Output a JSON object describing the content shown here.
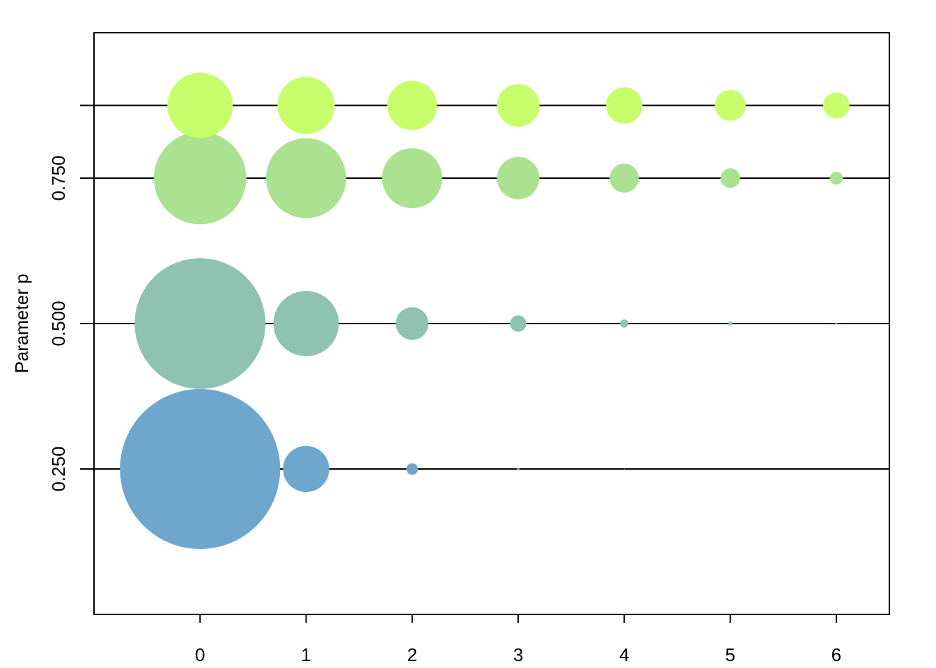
{
  "chart_data": {
    "type": "scatter",
    "title": "",
    "xlabel": "",
    "ylabel": "Parameter p",
    "x": [
      0,
      1,
      2,
      3,
      4,
      5,
      6
    ],
    "x_tick_labels": [
      "0",
      "1",
      "2",
      "3",
      "4",
      "5",
      "6"
    ],
    "xlim": [
      -1,
      6.5
    ],
    "ylim": [
      0,
      1
    ],
    "y_tick_values": [
      0.25,
      0.5,
      0.75
    ],
    "y_tick_labels": [
      "0.250",
      "0.500",
      "0.750"
    ],
    "marker_size_encoding": "bubble area proportional to value",
    "grid": false,
    "series": [
      {
        "p": 0.25,
        "color": "#6ea6cd",
        "values": [
          0.75,
          0.0625,
          0.00391,
          0.00024,
          1.53e-05,
          9.5e-07,
          6e-08
        ]
      },
      {
        "p": 0.5,
        "color": "#8dc3b0",
        "values": [
          0.5,
          0.125,
          0.03125,
          0.0078,
          0.00195,
          0.00049,
          0.00012
        ]
      },
      {
        "p": 0.75,
        "color": "#aae291",
        "values": [
          0.25,
          0.1875,
          0.1055,
          0.0527,
          0.0247,
          0.0111,
          0.0049
        ]
      },
      {
        "p": 0.875,
        "color": "#c8fd6b",
        "values": [
          0.125,
          0.0957,
          0.0718,
          0.0529,
          0.0386,
          0.0279,
          0.0201
        ]
      }
    ]
  }
}
